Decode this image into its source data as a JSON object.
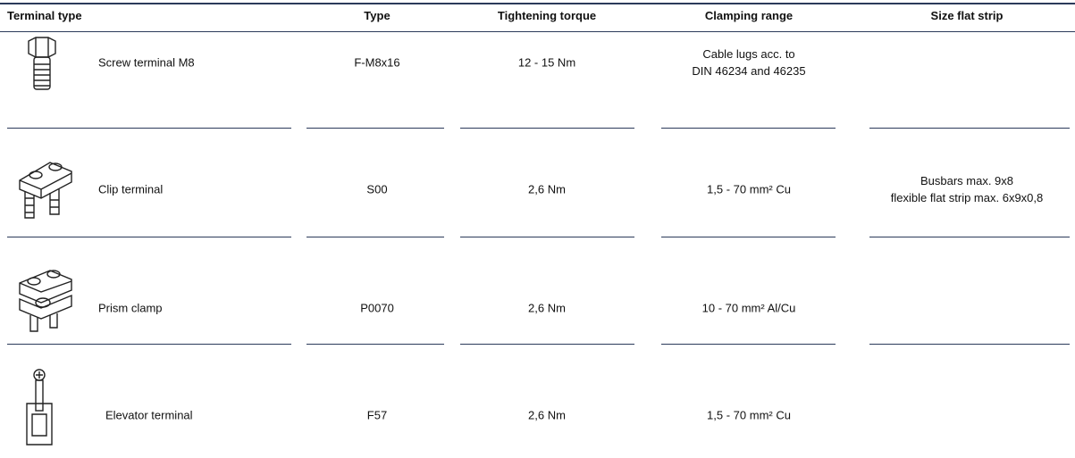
{
  "header": {
    "columns": [
      "Terminal type",
      "Type",
      "Tightening torque",
      "Clamping range",
      "Size flat strip"
    ]
  },
  "table": {
    "rows": [
      {
        "terminal_type": "Screw terminal M8",
        "type": "F-M8x16",
        "torque": "12 - 15 Nm",
        "clamping_range": [
          "Cable lugs acc. to",
          "DIN 46234 and 46235"
        ]
      },
      {
        "terminal_type": "Clip terminal",
        "type": "S00",
        "torque": "2,6 Nm",
        "clamping_range": [
          "1,5 - 70 mm² Cu"
        ],
        "size_flat_strip": [
          "Busbars max. 9x8",
          "flexible flat strip max. 6x9x0,8"
        ]
      },
      {
        "terminal_type": "Prism clamp",
        "type": "P0070",
        "torque": "2,6 Nm",
        "clamping_range": [
          "10 - 70 mm² Al/Cu"
        ]
      },
      {
        "terminal_type": "Elevator terminal",
        "type": "F57",
        "torque": "2,6 Nm",
        "clamping_range": [
          "1,5 - 70 mm² Cu"
        ]
      }
    ]
  }
}
